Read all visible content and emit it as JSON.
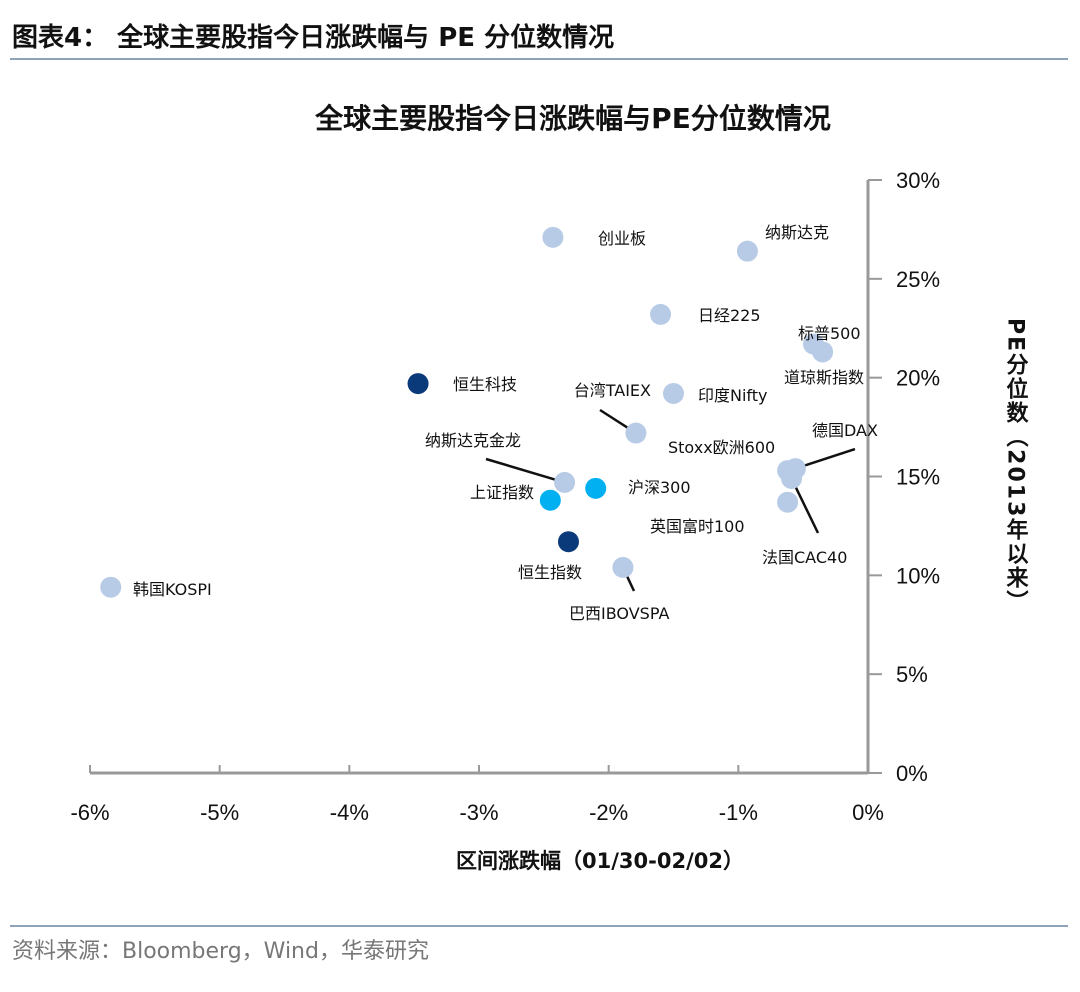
{
  "header": {
    "figure_title": "图表4：  全球主要股指今日涨跌幅与 PE 分位数情况",
    "source": "资料来源：Bloomberg，Wind，华泰研究"
  },
  "colors": {
    "light": "#b7cbe6",
    "dark": "#0b3a7a",
    "bright": "#00b0f0",
    "rule": "#8fa3b8"
  },
  "chart_data": {
    "type": "scatter",
    "title": "全球主要股指今日涨跌幅与PE分位数情况",
    "xlabel": "区间涨跌幅（01/30-02/02）",
    "ylabel": "PE分位数（2013年以来）",
    "xlim": [
      -6,
      0
    ],
    "ylim": [
      0,
      30
    ],
    "x_ticks": [
      "-6%",
      "-5%",
      "-4%",
      "-3%",
      "-2%",
      "-1%",
      "0%"
    ],
    "y_ticks": [
      "0%",
      "5%",
      "10%",
      "15%",
      "20%",
      "25%",
      "30%"
    ],
    "grid": false,
    "points": [
      {
        "name": "创业板",
        "x": -2.43,
        "y": 27.1,
        "color": "light"
      },
      {
        "name": "纳斯达克",
        "x": -0.93,
        "y": 26.4,
        "color": "light"
      },
      {
        "name": "日经225",
        "x": -1.6,
        "y": 23.2,
        "color": "light"
      },
      {
        "name": "标普500",
        "x": -0.42,
        "y": 21.7,
        "color": "light"
      },
      {
        "name": "道琼斯指数",
        "x": -0.35,
        "y": 21.3,
        "color": "light"
      },
      {
        "name": "恒生科技",
        "x": -3.47,
        "y": 19.7,
        "color": "dark"
      },
      {
        "name": "印度Nifty",
        "x": -1.5,
        "y": 19.2,
        "color": "light"
      },
      {
        "name": "台湾TAIEX",
        "x": -1.79,
        "y": 17.2,
        "color": "light"
      },
      {
        "name": "Stoxx欧洲600",
        "x": -0.62,
        "y": 15.3,
        "color": "light"
      },
      {
        "name": "德国DAX",
        "x": -0.56,
        "y": 15.4,
        "color": "light"
      },
      {
        "name": "纳斯达克金龙",
        "x": -2.34,
        "y": 14.7,
        "color": "light"
      },
      {
        "name": "上证指数",
        "x": -2.45,
        "y": 13.8,
        "color": "bright"
      },
      {
        "name": "沪深300",
        "x": -2.1,
        "y": 14.4,
        "color": "bright"
      },
      {
        "name": "英国富时100",
        "x": -0.62,
        "y": 13.7,
        "color": "light"
      },
      {
        "name": "法国CAC40",
        "x": -0.59,
        "y": 14.9,
        "color": "light"
      },
      {
        "name": "恒生指数",
        "x": -2.31,
        "y": 11.7,
        "color": "dark"
      },
      {
        "name": "巴西IBOVSPA",
        "x": -1.89,
        "y": 10.4,
        "color": "light"
      },
      {
        "name": "韩国KOSPI",
        "x": -5.84,
        "y": 9.4,
        "color": "light"
      }
    ]
  }
}
